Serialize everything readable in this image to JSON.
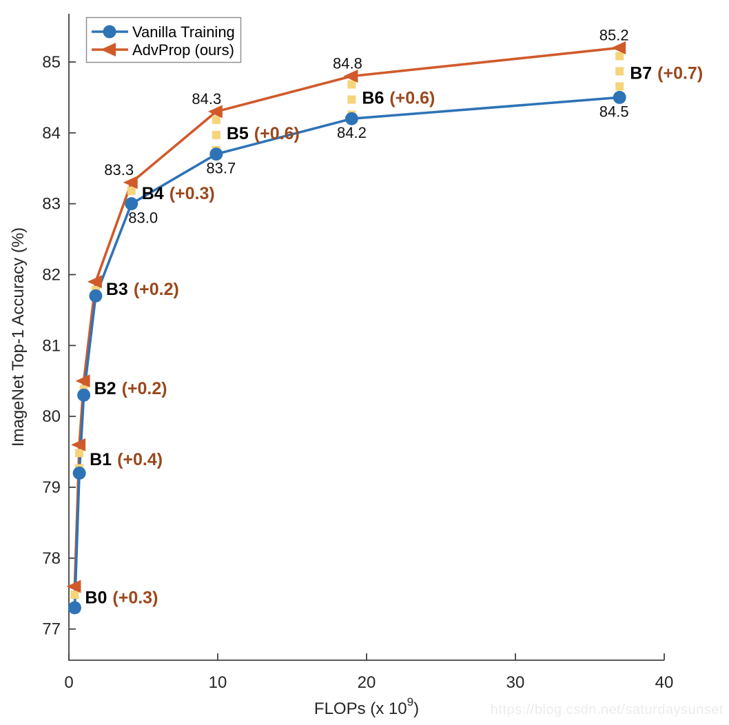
{
  "watermark": "https://blog.csdn.net/saturdaysunset",
  "chart_data": {
    "type": "line",
    "title": "",
    "xlabel": {
      "prefix": "FLOPs (x 10",
      "exponent": "9",
      "suffix": ")"
    },
    "ylabel": "ImageNet Top-1 Accuracy (%)",
    "xlim": [
      0,
      40
    ],
    "ylim": [
      76.56,
      85.68
    ],
    "x_ticks": [
      0,
      10,
      20,
      30,
      40
    ],
    "y_ticks": [
      77,
      78,
      79,
      80,
      81,
      82,
      83,
      84,
      85
    ],
    "grid": false,
    "legend": {
      "position": "top-left",
      "entries": [
        {
          "label": "Vanilla Training",
          "series": "vanilla",
          "marker": "circle"
        },
        {
          "label": "AdvProp (ours)",
          "series": "advprop",
          "marker": "triangle-left"
        }
      ]
    },
    "series": [
      {
        "name": "Vanilla Training",
        "key": "vanilla",
        "marker": "circle"
      },
      {
        "name": "AdvProp (ours)",
        "key": "advprop",
        "marker": "triangle-left"
      }
    ],
    "models": [
      {
        "name": "B0",
        "flops": 0.39,
        "vanilla": 77.3,
        "advprop": 77.6,
        "gain_label": "(+0.3)",
        "show_values": false
      },
      {
        "name": "B1",
        "flops": 0.7,
        "vanilla": 79.2,
        "advprop": 79.6,
        "gain_label": "(+0.4)",
        "show_values": false
      },
      {
        "name": "B2",
        "flops": 1.0,
        "vanilla": 80.3,
        "advprop": 80.5,
        "gain_label": "(+0.2)",
        "show_values": false
      },
      {
        "name": "B3",
        "flops": 1.8,
        "vanilla": 81.7,
        "advprop": 81.9,
        "gain_label": "(+0.2)",
        "show_values": false
      },
      {
        "name": "B4",
        "flops": 4.2,
        "vanilla": 83.0,
        "advprop": 83.3,
        "gain_label": "(+0.3)",
        "show_values": true
      },
      {
        "name": "B5",
        "flops": 9.9,
        "vanilla": 83.7,
        "advprop": 84.3,
        "gain_label": "(+0.6)",
        "show_values": true
      },
      {
        "name": "B6",
        "flops": 19,
        "vanilla": 84.2,
        "advprop": 84.8,
        "gain_label": "(+0.6)",
        "show_values": true
      },
      {
        "name": "B7",
        "flops": 37,
        "vanilla": 84.5,
        "advprop": 85.2,
        "gain_label": "(+0.7)",
        "show_values": true
      }
    ],
    "colors": {
      "vanilla": "#2E73B6",
      "advprop": "#D05A2A",
      "connector": "#F5D47A",
      "gain_text": "#9A481D",
      "model_text": "#000000",
      "value_text": "#111111",
      "axis": "#404040",
      "tick_text": "#262626",
      "legend_border": "#909090"
    }
  }
}
